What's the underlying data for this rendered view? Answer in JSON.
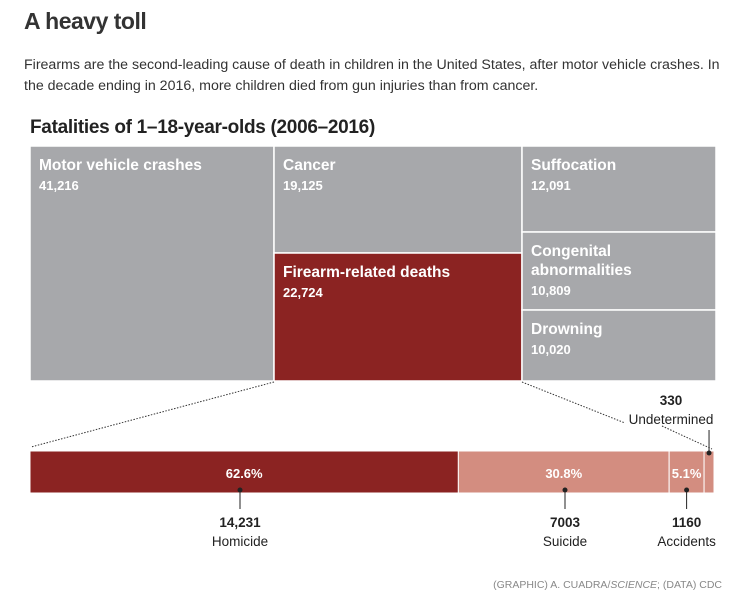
{
  "header": {
    "title": "A heavy toll",
    "description": "Firearms are the second-leading cause of death in children in the United States, after motor vehicle crashes. In the decade ending in 2016, more children died from gun injuries than from cancer."
  },
  "chart_data": [
    {
      "type": "treemap",
      "title": "Fatalities of 1–18-year-olds (2006–2016)",
      "items": [
        {
          "name": "Motor vehicle crashes",
          "value": 41216,
          "value_label": "41,216",
          "color": "#a7a8ab"
        },
        {
          "name": "Cancer",
          "value": 19125,
          "value_label": "19,125",
          "color": "#a7a8ab"
        },
        {
          "name": "Firearm-related deaths",
          "value": 22724,
          "value_label": "22,724",
          "color": "#8b2322"
        },
        {
          "name": "Suffocation",
          "value": 12091,
          "value_label": "12,091",
          "color": "#a7a8ab"
        },
        {
          "name": "Congenital abnormalities",
          "name_lines": [
            "Congenital",
            "abnormalities"
          ],
          "value": 10809,
          "value_label": "10,809",
          "color": "#a7a8ab"
        },
        {
          "name": "Drowning",
          "value": 10020,
          "value_label": "10,020",
          "color": "#a7a8ab"
        }
      ]
    },
    {
      "type": "stacked-bar",
      "segments": [
        {
          "name": "Homicide",
          "value": 14231,
          "value_label": "14,231",
          "percent": 62.6,
          "percent_label": "62.6%",
          "color": "#8b2322"
        },
        {
          "name": "Suicide",
          "value": 7003,
          "value_label": "7003",
          "percent": 30.8,
          "percent_label": "30.8%",
          "color": "#d38d80"
        },
        {
          "name": "Accidents",
          "value": 1160,
          "value_label": "1160",
          "percent": 5.1,
          "percent_label": "5.1%",
          "color": "#d38d80"
        },
        {
          "name": "Undetermined",
          "value": 330,
          "value_label": "330",
          "percent_label": "",
          "color": "#d38d80"
        }
      ]
    }
  ],
  "credit": {
    "pre": "(GRAPHIC) A. CUADRA/",
    "italic": "SCIENCE",
    "post": "; (DATA) CDC"
  }
}
